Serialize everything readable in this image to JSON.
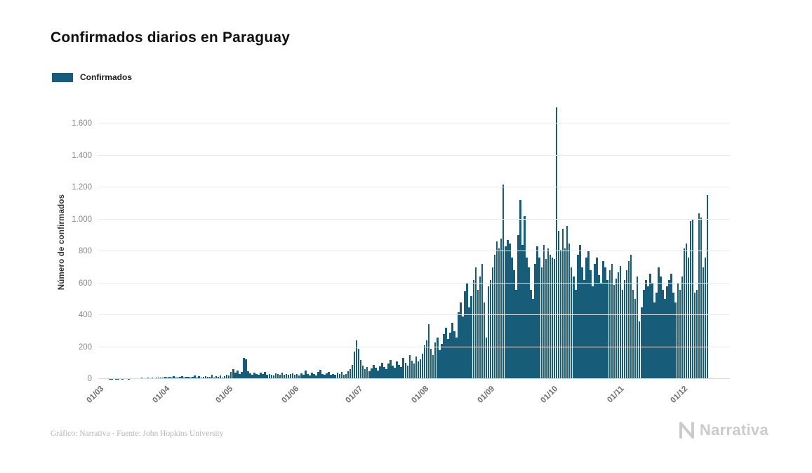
{
  "page": {
    "title": "Confirmados diarios en Paraguay",
    "legend": {
      "label": "Confirmados",
      "color": "#175c78"
    },
    "footer": {
      "credit": "Gráfico: Narrativa - Fuente: John Hopkins University",
      "brand": "Narrativa"
    }
  },
  "chart_data": {
    "type": "bar",
    "title": "Confirmados diarios en Paraguay",
    "series_name": "Confirmados",
    "xlabel": "",
    "ylabel": "Número de confirmados",
    "bar_color": "#175c78",
    "grid": true,
    "legend_position": "top-left",
    "ylim": [
      0,
      1715
    ],
    "yticks": [
      0,
      200,
      400,
      600,
      800,
      1000,
      1200,
      1400,
      1600
    ],
    "ytick_labels": [
      "0",
      "200",
      "400",
      "600",
      "800",
      "1.000",
      "1.200",
      "1.400",
      "1.600"
    ],
    "x_start": "2020-03-01",
    "x_frequency": "daily",
    "x_tick_rotation": -45,
    "xticks": [
      {
        "index": 0,
        "label": "01/03"
      },
      {
        "index": 31,
        "label": "01/04"
      },
      {
        "index": 61,
        "label": "01/05"
      },
      {
        "index": 92,
        "label": "01/06"
      },
      {
        "index": 122,
        "label": "01/07"
      },
      {
        "index": 153,
        "label": "01/08"
      },
      {
        "index": 184,
        "label": "01/09"
      },
      {
        "index": 214,
        "label": "01/10"
      },
      {
        "index": 245,
        "label": "01/11"
      },
      {
        "index": 275,
        "label": "01/12"
      }
    ],
    "values": [
      0,
      0,
      0,
      0,
      0,
      1,
      1,
      0,
      2,
      1,
      3,
      2,
      4,
      3,
      2,
      5,
      4,
      6,
      3,
      5,
      8,
      6,
      4,
      7,
      5,
      9,
      6,
      8,
      10,
      7,
      9,
      12,
      10,
      14,
      9,
      16,
      11,
      8,
      13,
      18,
      10,
      12,
      15,
      9,
      14,
      22,
      11,
      16,
      10,
      13,
      19,
      12,
      15,
      25,
      10,
      17,
      13,
      20,
      11,
      16,
      28,
      22,
      45,
      62,
      38,
      55,
      30,
      42,
      130,
      122,
      48,
      35,
      28,
      40,
      32,
      25,
      38,
      30,
      45,
      26,
      33,
      28,
      22,
      35,
      30,
      25,
      40,
      28,
      32,
      26,
      30,
      35,
      25,
      30,
      20,
      35,
      28,
      55,
      32,
      24,
      40,
      30,
      22,
      45,
      58,
      30,
      25,
      35,
      42,
      28,
      33,
      25,
      38,
      30,
      45,
      26,
      32,
      48,
      60,
      90,
      170,
      240,
      190,
      120,
      85,
      60,
      75,
      50,
      65,
      90,
      70,
      55,
      80,
      100,
      75,
      60,
      95,
      120,
      85,
      70,
      110,
      90,
      75,
      130,
      100,
      85,
      150,
      115,
      95,
      140,
      110,
      125,
      160,
      210,
      240,
      345,
      190,
      150,
      230,
      260,
      180,
      220,
      280,
      320,
      250,
      290,
      350,
      300,
      260,
      420,
      480,
      390,
      550,
      600,
      450,
      520,
      620,
      700,
      560,
      640,
      720,
      480,
      260,
      580,
      620,
      700,
      780,
      860,
      820,
      880,
      1220,
      830,
      870,
      850,
      760,
      680,
      560,
      900,
      1120,
      840,
      1020,
      760,
      700,
      560,
      500,
      720,
      830,
      760,
      700,
      840,
      750,
      820,
      780,
      760,
      750,
      1700,
      930,
      810,
      940,
      820,
      960,
      850,
      700,
      640,
      560,
      780,
      840,
      700,
      620,
      760,
      800,
      680,
      580,
      720,
      760,
      650,
      600,
      740,
      700,
      620,
      680,
      720,
      590,
      630,
      670,
      710,
      560,
      620,
      680,
      740,
      780,
      560,
      500,
      640,
      360,
      450,
      560,
      620,
      580,
      660,
      600,
      480,
      540,
      700,
      640,
      560,
      500,
      580,
      620,
      660,
      540,
      480,
      600,
      560,
      640,
      820,
      850,
      760,
      990,
      1000,
      540,
      560,
      1040,
      1010,
      700,
      760,
      1150
    ]
  }
}
